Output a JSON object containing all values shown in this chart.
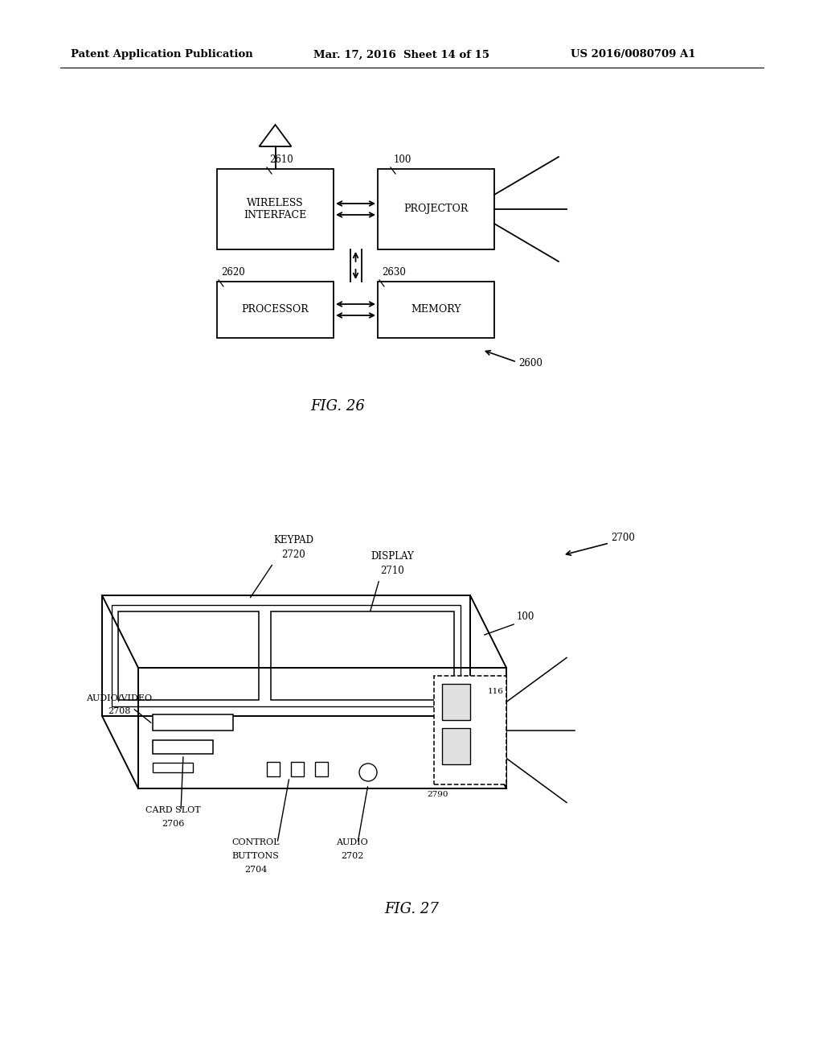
{
  "bg_color": "#ffffff",
  "header_left": "Patent Application Publication",
  "header_mid": "Mar. 17, 2016  Sheet 14 of 15",
  "header_right": "US 2016/0080709 A1"
}
